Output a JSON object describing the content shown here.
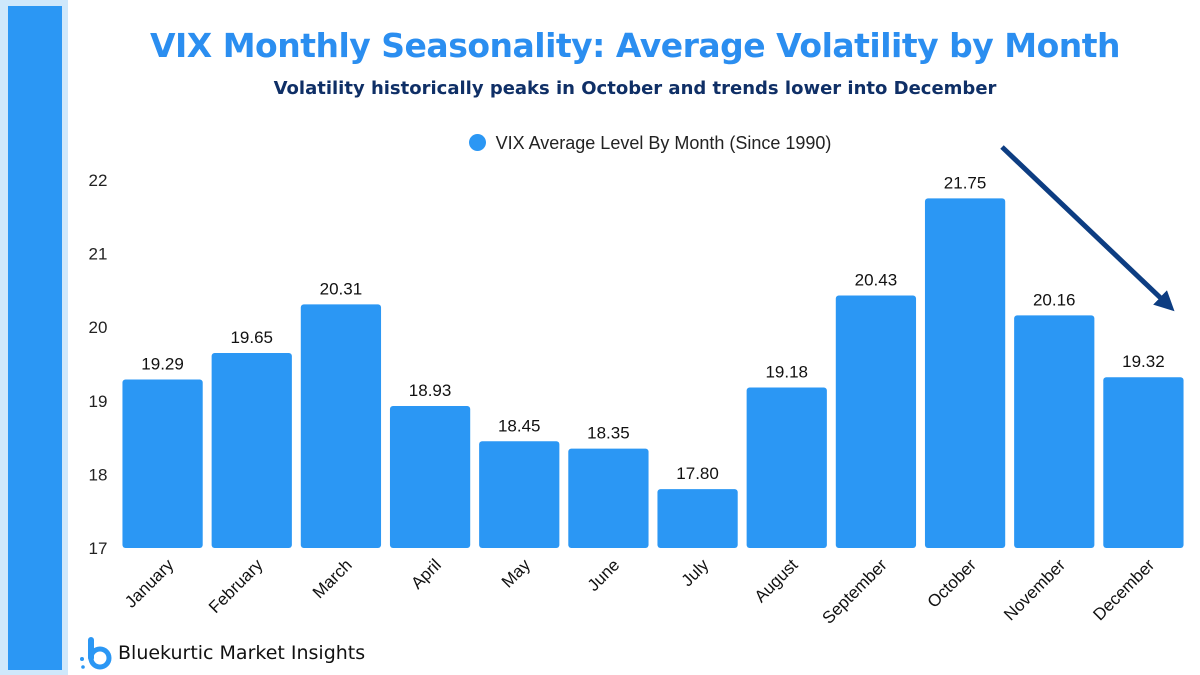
{
  "chart_data": {
    "type": "bar",
    "title": "VIX Monthly Seasonality: Average Volatility by Month",
    "subtitle": "Volatility historically peaks in October and trends lower into December",
    "legend": {
      "label": "VIX Average Level By Month (Since 1990)",
      "placement": "top"
    },
    "categories": [
      "January",
      "February",
      "March",
      "April",
      "May",
      "June",
      "July",
      "August",
      "September",
      "October",
      "November",
      "December"
    ],
    "values": [
      19.29,
      19.65,
      20.31,
      18.93,
      18.45,
      18.35,
      17.8,
      19.18,
      20.43,
      21.75,
      20.16,
      19.32
    ],
    "data_labels": [
      "19.29",
      "19.65",
      "20.31",
      "18.93",
      "18.45",
      "18.35",
      "17.80",
      "19.18",
      "20.43",
      "21.75",
      "20.16",
      "19.32"
    ],
    "y_ticks": [
      "17",
      "18",
      "19",
      "20",
      "21",
      "22"
    ],
    "ylim": [
      17,
      22
    ],
    "xlabel": "",
    "ylabel": "",
    "grid": false,
    "annotations": [
      {
        "type": "arrow",
        "description": "downward trend arrow from October toward December"
      }
    ],
    "bar_color": "#2b97f4",
    "arrow_color": "#0d3d82"
  },
  "branding": {
    "name": "Bluekurtic Market Insights",
    "logo_icon": "bluekurtic-logo-icon",
    "logo_color": "#2b97f4"
  }
}
